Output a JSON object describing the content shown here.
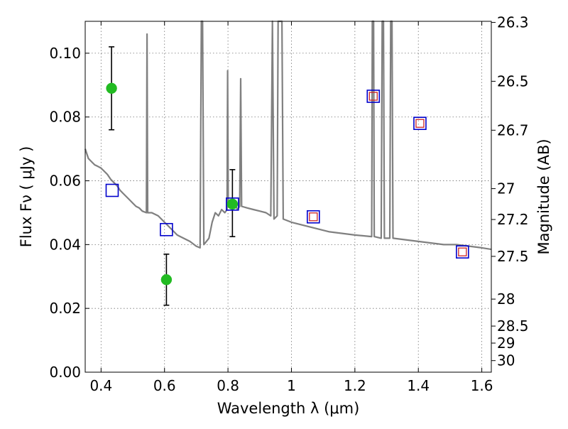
{
  "chart_data": {
    "type": "scatter",
    "title": "",
    "xlabel": "Wavelength  λ (μm)",
    "ylabel": "Flux  Fν  ( μJy )",
    "y2label": "Magnitude (AB)",
    "xlim": [
      0.35,
      1.63
    ],
    "ylim": [
      0.0,
      0.11
    ],
    "grid": true,
    "x_ticks": [
      {
        "value": 0.4,
        "label": "0.4"
      },
      {
        "value": 0.6,
        "label": "0.6"
      },
      {
        "value": 0.8,
        "label": "0.8"
      },
      {
        "value": 1.0,
        "label": "1"
      },
      {
        "value": 1.2,
        "label": "1.2"
      },
      {
        "value": 1.4,
        "label": "1.4"
      },
      {
        "value": 1.6,
        "label": "1.6"
      }
    ],
    "y_ticks": [
      {
        "value": 0.0,
        "label": "0.00"
      },
      {
        "value": 0.02,
        "label": "0.02"
      },
      {
        "value": 0.04,
        "label": "0.04"
      },
      {
        "value": 0.06,
        "label": "0.06"
      },
      {
        "value": 0.08,
        "label": "0.08"
      },
      {
        "value": 0.1,
        "label": "0.10"
      }
    ],
    "y2_ticks": [
      {
        "value": 26.3,
        "label": "26.3"
      },
      {
        "value": 26.5,
        "label": "26.5"
      },
      {
        "value": 26.7,
        "label": "26.7"
      },
      {
        "value": 27.0,
        "label": "27"
      },
      {
        "value": 27.2,
        "label": "27.2"
      },
      {
        "value": 27.5,
        "label": "27.5"
      },
      {
        "value": 28.0,
        "label": "28"
      },
      {
        "value": 28.5,
        "label": "28.5"
      },
      {
        "value": 29.0,
        "label": "29"
      },
      {
        "value": 30.0,
        "label": "30"
      }
    ],
    "series": [
      {
        "type": "line",
        "color": "#808080",
        "points": [
          [
            0.35,
            0.07
          ],
          [
            0.36,
            0.067
          ],
          [
            0.37,
            0.066
          ],
          [
            0.38,
            0.065
          ],
          [
            0.39,
            0.0645
          ],
          [
            0.4,
            0.064
          ],
          [
            0.41,
            0.063
          ],
          [
            0.42,
            0.062
          ],
          [
            0.43,
            0.0605
          ],
          [
            0.44,
            0.0595
          ],
          [
            0.45,
            0.0585
          ],
          [
            0.46,
            0.057
          ],
          [
            0.47,
            0.056
          ],
          [
            0.48,
            0.055
          ],
          [
            0.49,
            0.054
          ],
          [
            0.5,
            0.053
          ],
          [
            0.51,
            0.052
          ],
          [
            0.52,
            0.0515
          ],
          [
            0.53,
            0.0505
          ],
          [
            0.543,
            0.05
          ],
          [
            0.545,
            0.106
          ],
          [
            0.547,
            0.05
          ],
          [
            0.56,
            0.05
          ],
          [
            0.58,
            0.049
          ],
          [
            0.6,
            0.047
          ],
          [
            0.62,
            0.045
          ],
          [
            0.64,
            0.043
          ],
          [
            0.66,
            0.042
          ],
          [
            0.68,
            0.041
          ],
          [
            0.7,
            0.0395
          ],
          [
            0.712,
            0.039
          ],
          [
            0.716,
            0.11
          ],
          [
            0.72,
            0.11
          ],
          [
            0.724,
            0.04
          ],
          [
            0.74,
            0.042
          ],
          [
            0.75,
            0.047
          ],
          [
            0.76,
            0.05
          ],
          [
            0.77,
            0.049
          ],
          [
            0.78,
            0.051
          ],
          [
            0.79,
            0.05
          ],
          [
            0.797,
            0.051
          ],
          [
            0.799,
            0.0945
          ],
          [
            0.801,
            0.052
          ],
          [
            0.81,
            0.052
          ],
          [
            0.82,
            0.053
          ],
          [
            0.83,
            0.051
          ],
          [
            0.837,
            0.052
          ],
          [
            0.84,
            0.092
          ],
          [
            0.843,
            0.052
          ],
          [
            0.86,
            0.0515
          ],
          [
            0.88,
            0.051
          ],
          [
            0.9,
            0.0505
          ],
          [
            0.92,
            0.05
          ],
          [
            0.935,
            0.049
          ],
          [
            0.94,
            0.11
          ],
          [
            0.945,
            0.048
          ],
          [
            0.955,
            0.049
          ],
          [
            0.958,
            0.11
          ],
          [
            0.962,
            0.11
          ],
          [
            0.966,
            0.11
          ],
          [
            0.97,
            0.11
          ],
          [
            0.974,
            0.048
          ],
          [
            1.0,
            0.047
          ],
          [
            1.04,
            0.046
          ],
          [
            1.08,
            0.045
          ],
          [
            1.12,
            0.044
          ],
          [
            1.16,
            0.0435
          ],
          [
            1.2,
            0.043
          ],
          [
            1.253,
            0.0425
          ],
          [
            1.255,
            0.11
          ],
          [
            1.259,
            0.11
          ],
          [
            1.261,
            0.0425
          ],
          [
            1.283,
            0.042
          ],
          [
            1.286,
            0.11
          ],
          [
            1.29,
            0.11
          ],
          [
            1.293,
            0.042
          ],
          [
            1.31,
            0.042
          ],
          [
            1.313,
            0.11
          ],
          [
            1.317,
            0.11
          ],
          [
            1.32,
            0.042
          ],
          [
            1.36,
            0.0415
          ],
          [
            1.4,
            0.041
          ],
          [
            1.44,
            0.0405
          ],
          [
            1.48,
            0.04
          ],
          [
            1.52,
            0.04
          ],
          [
            1.56,
            0.0395
          ],
          [
            1.6,
            0.039
          ],
          [
            1.63,
            0.0385
          ]
        ]
      },
      {
        "type": "scatter",
        "marker": "circle",
        "color": "#22bb22",
        "points": [
          {
            "x": 0.433,
            "y": 0.089,
            "yerr_low": 0.076,
            "yerr_high": 0.102
          },
          {
            "x": 0.606,
            "y": 0.029,
            "yerr_low": 0.021,
            "yerr_high": 0.037
          },
          {
            "x": 0.814,
            "y": 0.0527,
            "yerr_low": 0.0425,
            "yerr_high": 0.0635
          }
        ]
      },
      {
        "type": "scatter",
        "marker": "square",
        "color": "#0000cc",
        "points": [
          {
            "x": 0.435,
            "y": 0.057
          },
          {
            "x": 0.606,
            "y": 0.0447
          },
          {
            "x": 0.814,
            "y": 0.0527
          },
          {
            "x": 1.069,
            "y": 0.0487
          },
          {
            "x": 1.258,
            "y": 0.0865
          },
          {
            "x": 1.405,
            "y": 0.078
          },
          {
            "x": 1.539,
            "y": 0.0377
          }
        ]
      },
      {
        "type": "scatter",
        "marker": "square-small",
        "color": "#cc2222",
        "points": [
          {
            "x": 1.069,
            "y": 0.0487
          },
          {
            "x": 1.258,
            "y": 0.0865
          },
          {
            "x": 1.405,
            "y": 0.078
          },
          {
            "x": 1.539,
            "y": 0.0377
          }
        ]
      }
    ]
  }
}
